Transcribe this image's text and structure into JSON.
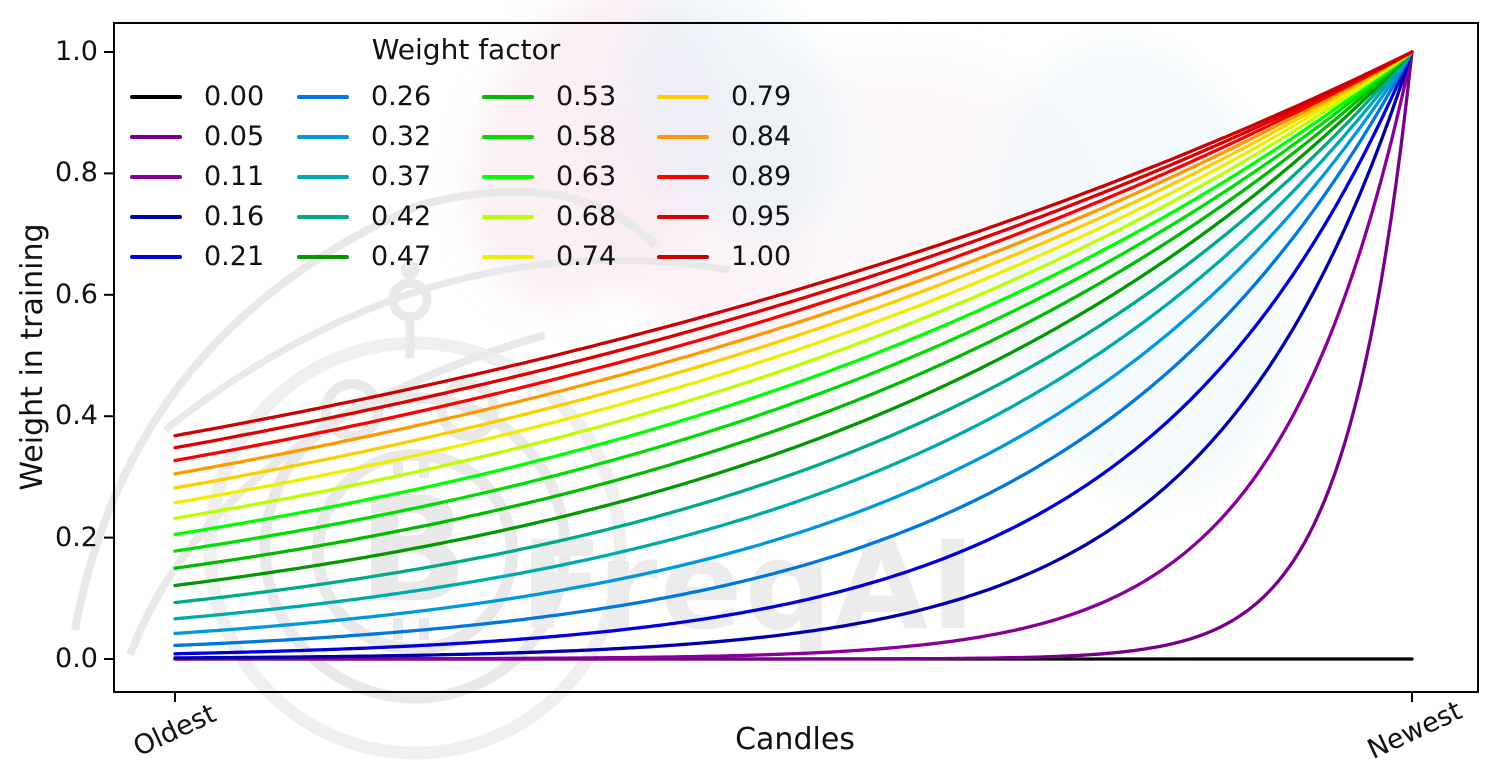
{
  "figure": {
    "background": "#ffffff",
    "watermark_text": "FreqAI",
    "watermark_color": "#ececec"
  },
  "chart_data": {
    "type": "line",
    "title": "",
    "xlabel": "Candles",
    "ylabel": "Weight in training",
    "x_tick_labels": [
      "Oldest",
      "Newest"
    ],
    "y_tick_labels": [
      "0.0",
      "0.2",
      "0.4",
      "0.6",
      "0.8",
      "1.0"
    ],
    "xlim_note": "x axis is candle age, only endpoints labeled, tick labels rotated 25deg",
    "ylim": [
      -0.05,
      1.05
    ],
    "grid": false,
    "legend": {
      "title": "Weight factor",
      "position": "upper-left",
      "columns": 4,
      "rows": 5,
      "frame": false
    },
    "curve_formula": "weight(x) = exp(-(1 - x) / factor), x in [0,1] from oldest to newest candle; factor = 0 gives constant 0",
    "series": [
      {
        "label": "0.00",
        "factor": 0.0,
        "color": "#000000",
        "weight_oldest": 0.0,
        "weight_newest": 0.0
      },
      {
        "label": "0.05",
        "factor": 0.0526,
        "color": "#770088",
        "weight_oldest": 0.0,
        "weight_newest": 1.0
      },
      {
        "label": "0.11",
        "factor": 0.1053,
        "color": "#880099",
        "weight_oldest": 0.0001,
        "weight_newest": 1.0
      },
      {
        "label": "0.16",
        "factor": 0.1579,
        "color": "#0000aa",
        "weight_oldest": 0.0018,
        "weight_newest": 1.0
      },
      {
        "label": "0.21",
        "factor": 0.2105,
        "color": "#0000dd",
        "weight_oldest": 0.0087,
        "weight_newest": 1.0
      },
      {
        "label": "0.26",
        "factor": 0.2632,
        "color": "#0077dd",
        "weight_oldest": 0.0224,
        "weight_newest": 1.0
      },
      {
        "label": "0.32",
        "factor": 0.3158,
        "color": "#0099dd",
        "weight_oldest": 0.0421,
        "weight_newest": 1.0
      },
      {
        "label": "0.37",
        "factor": 0.3684,
        "color": "#00aaaa",
        "weight_oldest": 0.0663,
        "weight_newest": 1.0
      },
      {
        "label": "0.42",
        "factor": 0.4211,
        "color": "#00aa88",
        "weight_oldest": 0.093,
        "weight_newest": 1.0
      },
      {
        "label": "0.47",
        "factor": 0.4737,
        "color": "#009900",
        "weight_oldest": 0.1211,
        "weight_newest": 1.0
      },
      {
        "label": "0.53",
        "factor": 0.5263,
        "color": "#00bb00",
        "weight_oldest": 0.1496,
        "weight_newest": 1.0
      },
      {
        "label": "0.58",
        "factor": 0.5789,
        "color": "#00dd00",
        "weight_oldest": 0.1778,
        "weight_newest": 1.0
      },
      {
        "label": "0.63",
        "factor": 0.6316,
        "color": "#00ff00",
        "weight_oldest": 0.2053,
        "weight_newest": 1.0
      },
      {
        "label": "0.68",
        "factor": 0.6842,
        "color": "#bbff00",
        "weight_oldest": 0.2319,
        "weight_newest": 1.0
      },
      {
        "label": "0.74",
        "factor": 0.7368,
        "color": "#eeee00",
        "weight_oldest": 0.2574,
        "weight_newest": 1.0
      },
      {
        "label": "0.79",
        "factor": 0.7895,
        "color": "#ffcc00",
        "weight_oldest": 0.2817,
        "weight_newest": 1.0
      },
      {
        "label": "0.84",
        "factor": 0.8421,
        "color": "#ff9900",
        "weight_oldest": 0.305,
        "weight_newest": 1.0
      },
      {
        "label": "0.89",
        "factor": 0.8947,
        "color": "#ff0000",
        "weight_oldest": 0.3271,
        "weight_newest": 1.0
      },
      {
        "label": "0.95",
        "factor": 0.9474,
        "color": "#dd0000",
        "weight_oldest": 0.348,
        "weight_newest": 1.0
      },
      {
        "label": "1.00",
        "factor": 1.0,
        "color": "#cc0000",
        "weight_oldest": 0.3679,
        "weight_newest": 1.0
      }
    ],
    "style": {
      "text_color": "#111111",
      "spine_color": "#000000",
      "line_width": 3.3,
      "colormap": "nipy_spectral"
    }
  }
}
